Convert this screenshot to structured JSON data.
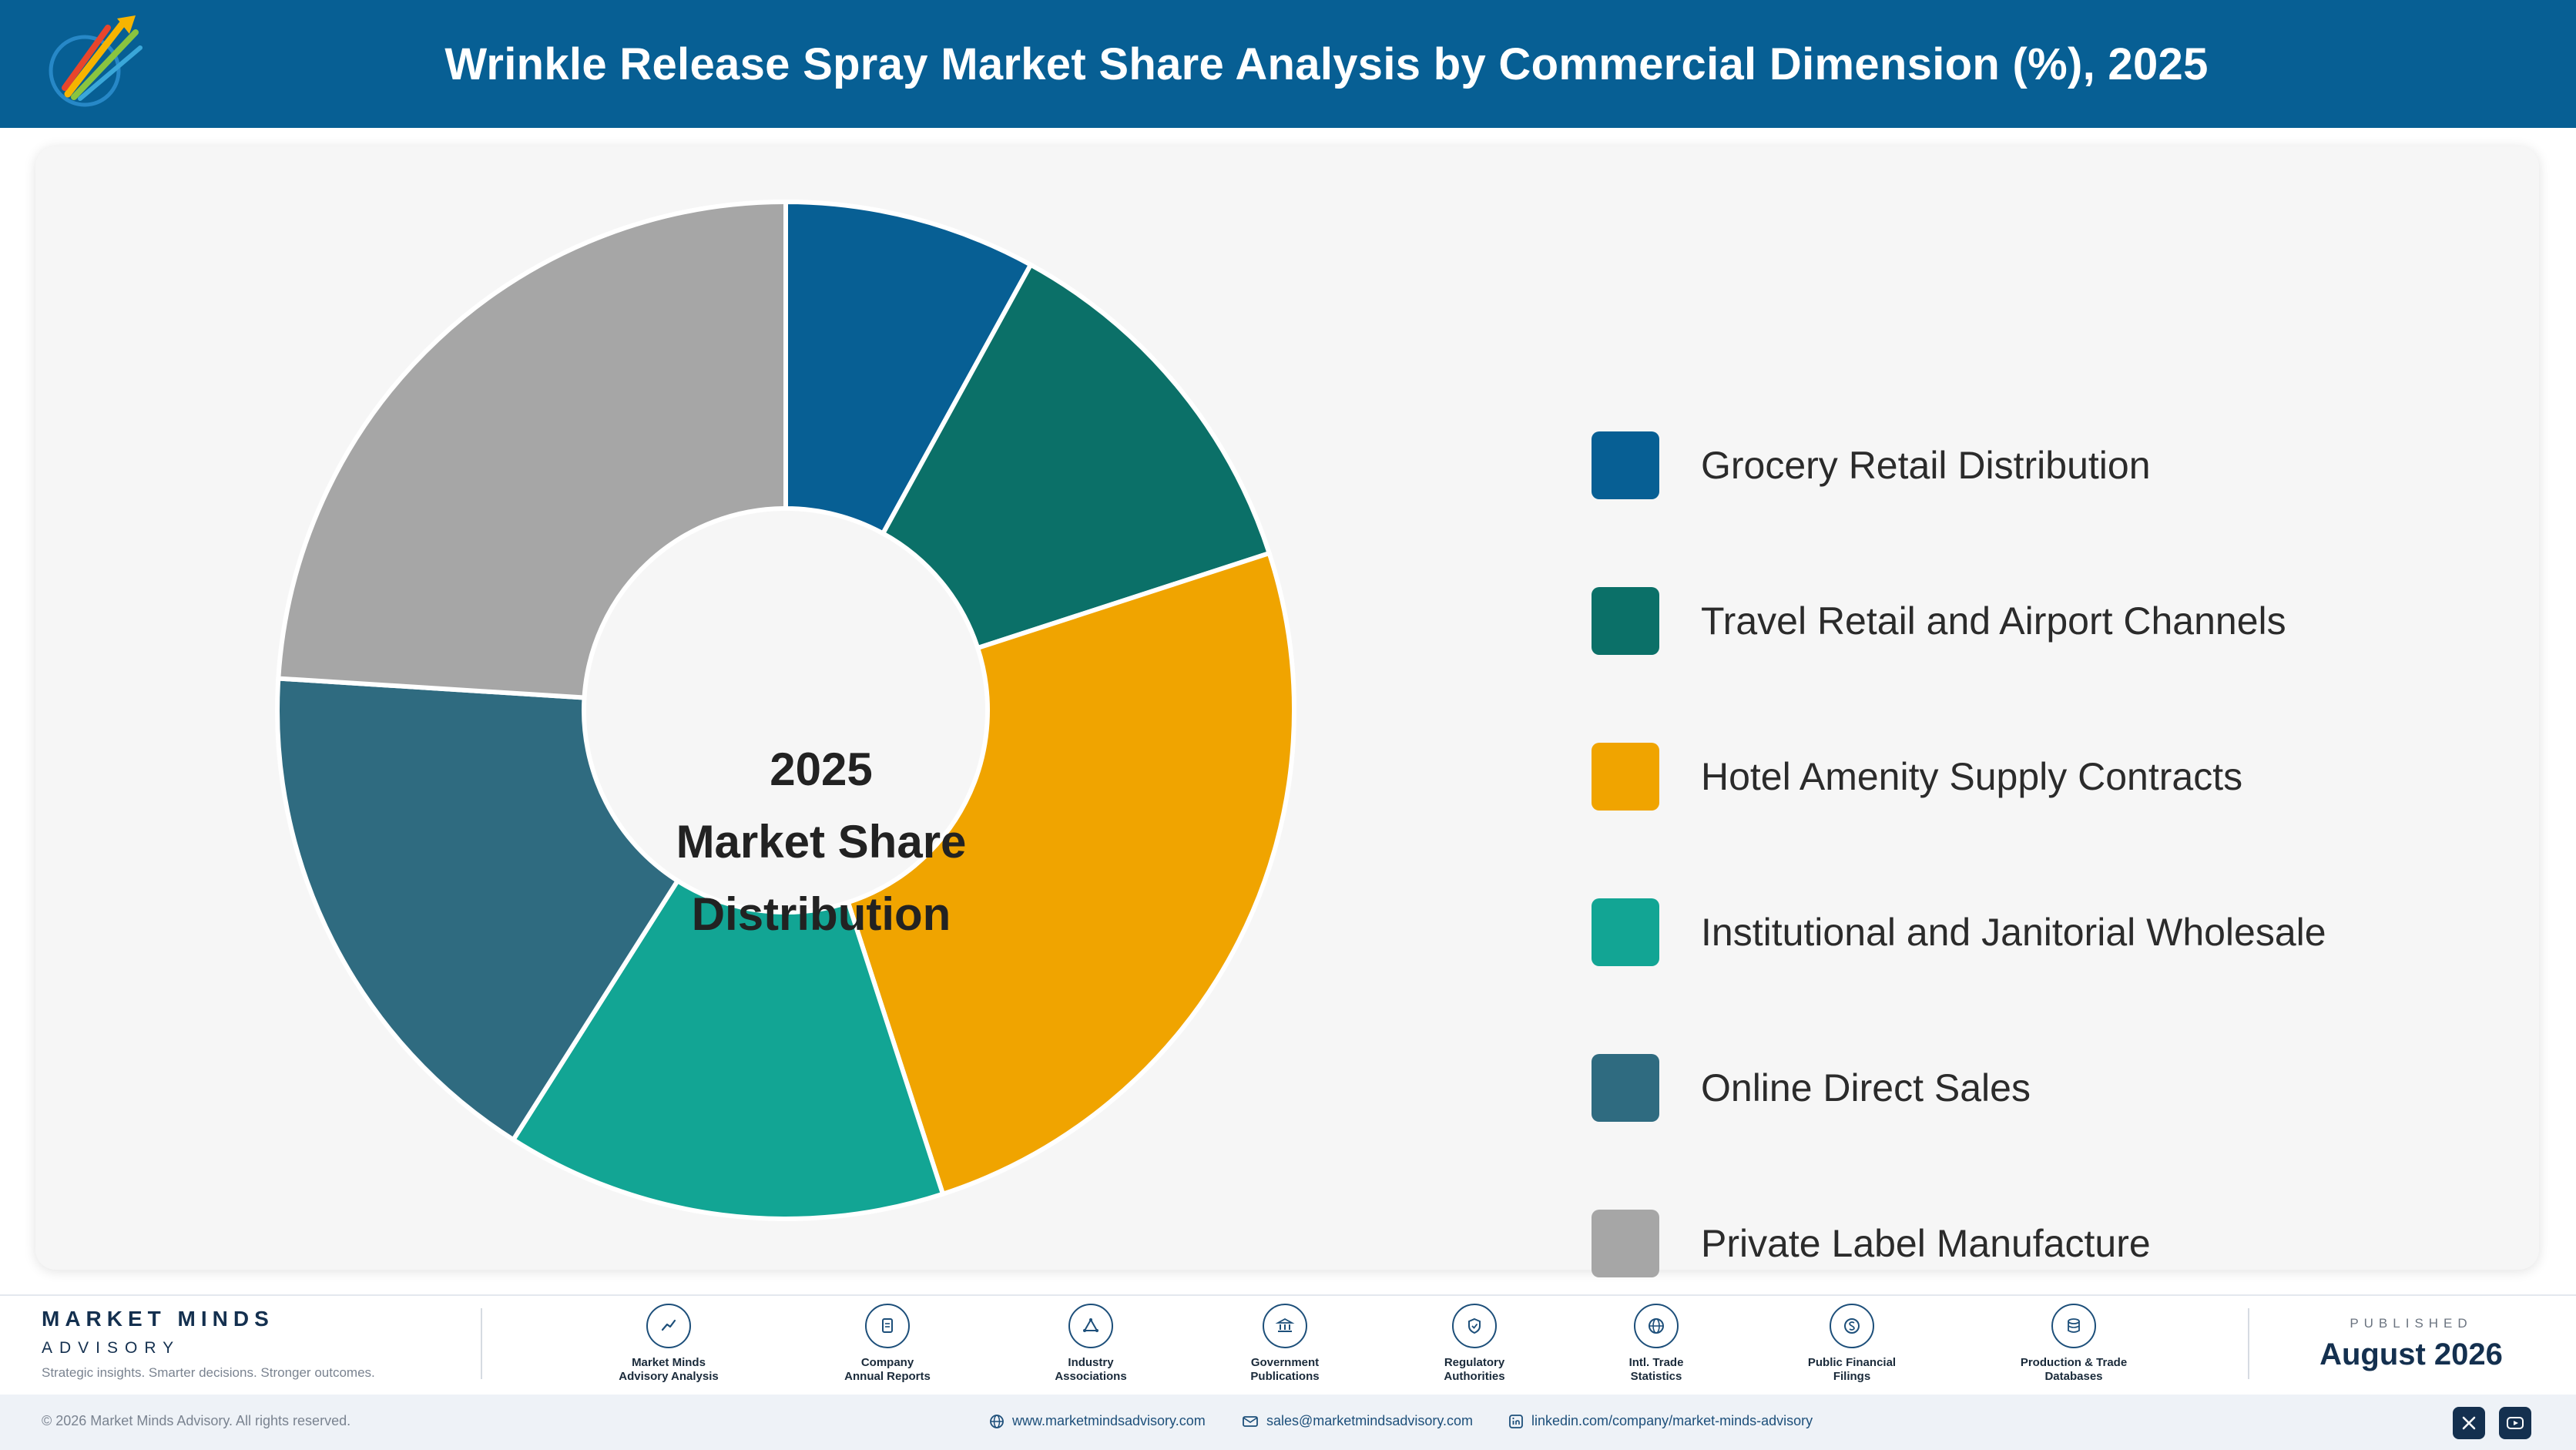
{
  "header": {
    "title": "Wrinkle Release Spray Market Share Analysis by Commercial Dimension (%), 2025"
  },
  "center_label": [
    "2025",
    "Market Share",
    "Distribution"
  ],
  "chart_data": {
    "type": "pie",
    "variant": "donut",
    "year": "2025",
    "categories": [
      "Grocery Retail Distribution",
      "Travel Retail and Airport Channels",
      "Hotel Amenity Supply Contracts",
      "Institutional and Janitorial Wholesale",
      "Online Direct Sales",
      "Private Label Manufacture"
    ],
    "values": [
      8,
      12,
      25,
      14,
      17,
      24
    ],
    "colors": [
      "#075f94",
      "#0b7068",
      "#f0a400",
      "#12a594",
      "#2f6b80",
      "#a6a6a6"
    ],
    "legend_position": "right"
  },
  "footer": {
    "brand_name": "MARKET MINDS",
    "brand_sub": "ADVISORY",
    "tagline": "Strategic insights. Smarter decisions. Stronger outcomes.",
    "sources": [
      {
        "icon": "trend-icon",
        "line1": "Market Minds",
        "line2": "Advisory Analysis"
      },
      {
        "icon": "document-icon",
        "line1": "Company",
        "line2": "Annual Reports"
      },
      {
        "icon": "network-icon",
        "line1": "Industry",
        "line2": "Associations"
      },
      {
        "icon": "government-icon",
        "line1": "Government",
        "line2": "Publications"
      },
      {
        "icon": "shield-icon",
        "line1": "Regulatory",
        "line2": "Authorities"
      },
      {
        "icon": "globe-icon",
        "line1": "Intl. Trade",
        "line2": "Statistics"
      },
      {
        "icon": "currency-icon",
        "line1": "Public Financial",
        "line2": "Filings"
      },
      {
        "icon": "database-icon",
        "line1": "Production & Trade",
        "line2": "Databases"
      }
    ],
    "published_label": "PUBLISHED",
    "published_date": "August 2026",
    "copyright": "© 2026 Market Minds Advisory. All rights reserved.",
    "website": "www.marketmindsadvisory.com",
    "email": "sales@marketmindsadvisory.com",
    "linkedin": "linkedin.com/company/market-minds-advisory"
  }
}
